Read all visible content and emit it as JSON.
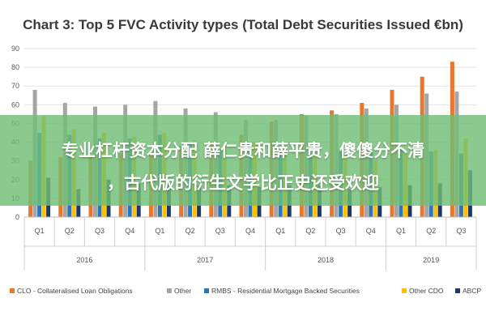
{
  "chart_data": {
    "type": "bar",
    "title": "Chart 3: Top 5 FVC Activity types (Total Debt Securities Issued €bn)",
    "ylim": [
      0,
      90
    ],
    "yticks": [
      0,
      10,
      20,
      30,
      40,
      50,
      60,
      70,
      80,
      90
    ],
    "categories": [
      "Q1",
      "Q2",
      "Q3",
      "Q4",
      "Q1",
      "Q2",
      "Q3",
      "Q4",
      "Q1",
      "Q2",
      "Q3",
      "Q4",
      "Q1",
      "Q2",
      "Q3"
    ],
    "years": [
      {
        "label": "2016",
        "quarters": 4
      },
      {
        "label": "2017",
        "quarters": 4
      },
      {
        "label": "2018",
        "quarters": 4
      },
      {
        "label": "2019",
        "quarters": 3
      }
    ],
    "grid": true,
    "legend_position": "bottom",
    "series": [
      {
        "name": "CLO - Collateralised Loan Obligations",
        "color": "#e8772e",
        "values": [
          30,
          32,
          33,
          34,
          35,
          38,
          40,
          44,
          51,
          55,
          57,
          61,
          68,
          75,
          83
        ]
      },
      {
        "name": "Other",
        "color": "#a5a5a5",
        "values": [
          68,
          61,
          59,
          60,
          62,
          58,
          56,
          52,
          52,
          54,
          55,
          58,
          60,
          66,
          67
        ]
      },
      {
        "name": "RMBS - Residential Mortgage Backed Securities",
        "color": "#2e75b6",
        "values": [
          45,
          44,
          42,
          42,
          44,
          40,
          36,
          38,
          35,
          34,
          35,
          36,
          37,
          35,
          34
        ]
      },
      {
        "name": "Other CDO",
        "color": "#ffc000",
        "values": [
          54,
          47,
          45,
          43,
          45,
          41,
          38,
          40,
          38,
          35,
          33,
          30,
          34,
          36,
          42
        ]
      },
      {
        "name": "ABCP",
        "color": "#203864",
        "values": [
          21,
          15,
          20,
          18,
          18,
          17,
          17,
          16,
          17,
          17,
          15,
          16,
          17,
          18,
          25
        ]
      }
    ]
  },
  "overlay": {
    "line1": "专业杠杆资本分配 薛仁贵和薛平贵，傻傻分不清",
    "line2": "，古代版的衍生文学比正史还受欢迎"
  }
}
